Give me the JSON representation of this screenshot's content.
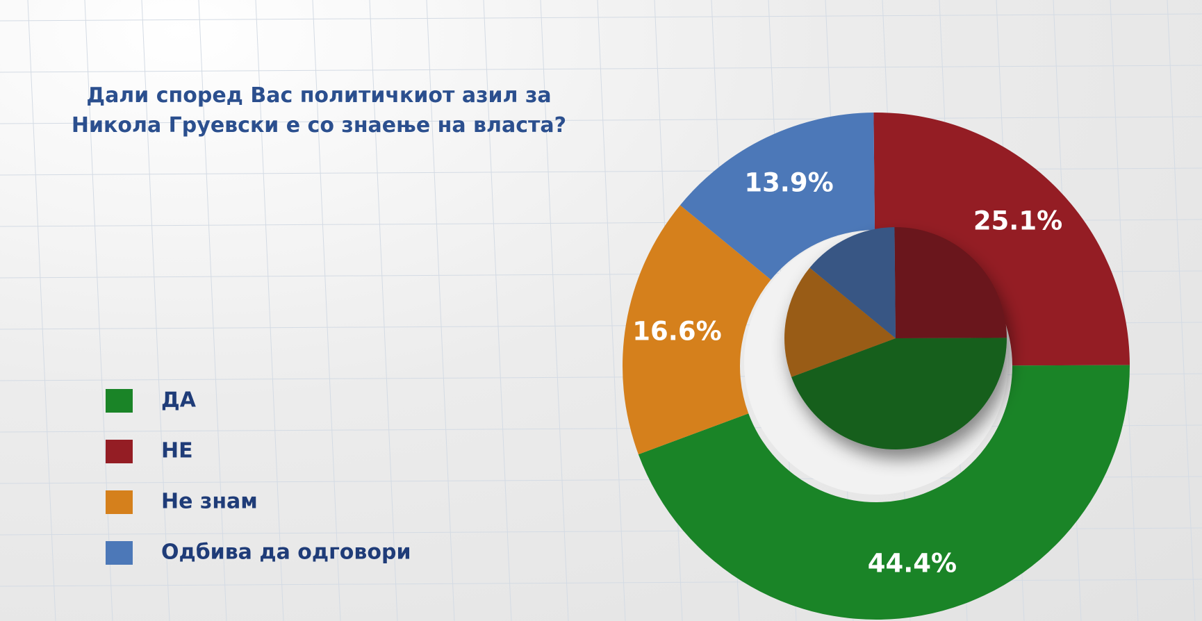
{
  "chart_data": {
    "type": "donut",
    "title": [
      "Дали според Вас политичкиот азил за",
      "Никола Груевски е со знаење на власта?"
    ],
    "categories": [
      "ДА",
      "НЕ",
      "Не знам",
      "Одбива да одговори"
    ],
    "values": [
      44.4,
      25.1,
      16.6,
      13.9
    ],
    "value_labels": [
      "44.4%",
      "25.1%",
      "16.6%",
      "13.9%"
    ],
    "colors": [
      "#1a8427",
      "#941d24",
      "#d5801c",
      "#4c78b8"
    ],
    "legend": "left"
  }
}
